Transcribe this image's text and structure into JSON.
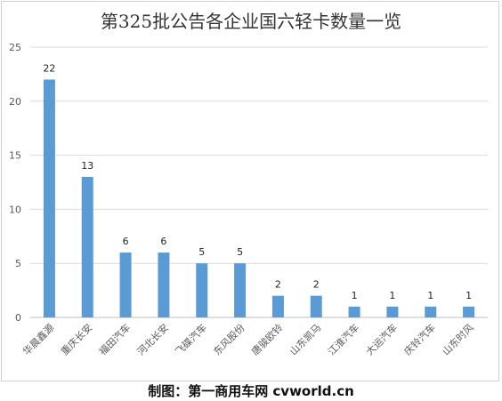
{
  "chart_data": {
    "type": "bar",
    "title": "第325批公告各企业国六轻卡数量一览",
    "categories": [
      "华晨鑫源",
      "重庆长安",
      "福田汽车",
      "河北长安",
      "飞碟汽车",
      "东风股份",
      "唐骏欧铃",
      "山东凯马",
      "江淮汽车",
      "大运汽车",
      "庆铃汽车",
      "山东时风"
    ],
    "values": [
      22,
      13,
      6,
      6,
      5,
      5,
      2,
      2,
      1,
      1,
      1,
      1
    ],
    "ylim": [
      0,
      25
    ],
    "yticks": [
      0,
      5,
      10,
      15,
      20,
      25
    ],
    "grid": true,
    "legend": "none",
    "bar_color": "#5b9bd5"
  },
  "credit": "制图：第一商用车网  cvworld.cn"
}
